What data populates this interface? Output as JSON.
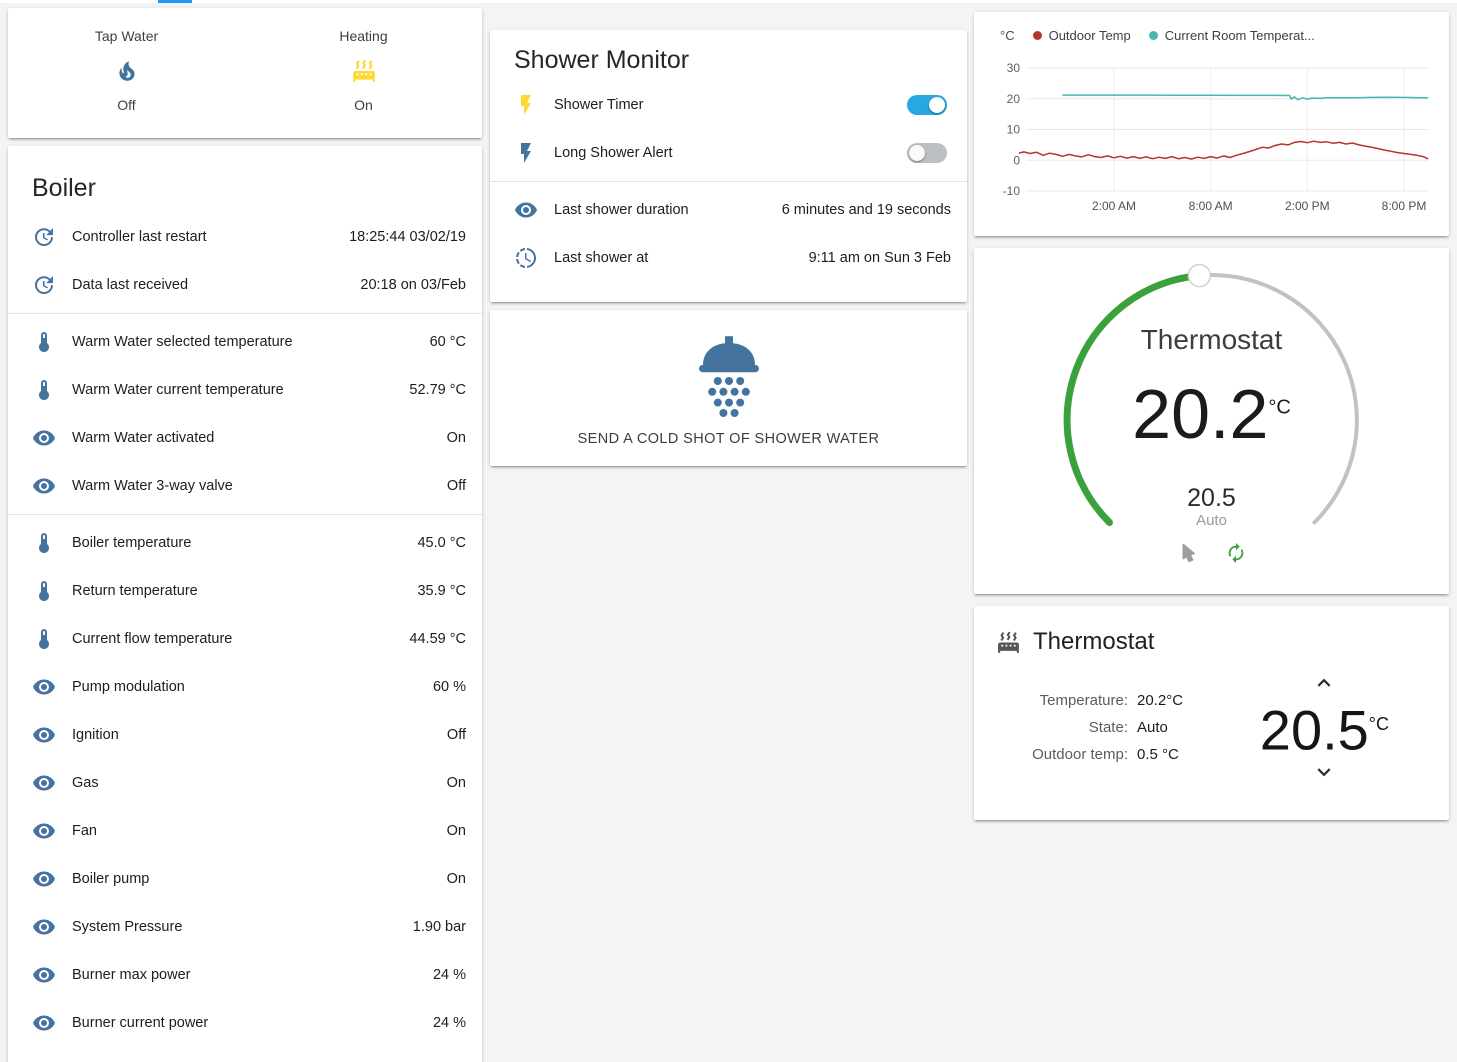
{
  "colors": {
    "accent": "#2196f3",
    "toggle_on": "#29a7e0",
    "icon_default": "#44739e",
    "icon_active": "#fdd835",
    "gauge_green": "#3aa13c",
    "gauge_track": "#c2c2c2",
    "outdoor_line": "#b5342c",
    "room_line": "#45b6b0"
  },
  "glance_card": {
    "items": [
      {
        "label": "Tap Water",
        "state": "Off",
        "icon": "fire",
        "icon_color": "#44739e"
      },
      {
        "label": "Heating",
        "state": "On",
        "icon": "radiator",
        "icon_color": "#fdd835"
      }
    ]
  },
  "boiler_card": {
    "title": "Boiler",
    "groups": [
      [
        {
          "icon": "update",
          "label": "Controller last restart",
          "value": "18:25:44 03/02/19"
        },
        {
          "icon": "update",
          "label": "Data last received",
          "value": "20:18 on 03/Feb"
        }
      ],
      [
        {
          "icon": "thermometer",
          "label": "Warm Water selected temperature",
          "value": "60 °C"
        },
        {
          "icon": "thermometer",
          "label": "Warm Water current temperature",
          "value": "52.79 °C"
        },
        {
          "icon": "eye",
          "label": "Warm Water activated",
          "value": "On"
        },
        {
          "icon": "eye",
          "label": "Warm Water 3-way valve",
          "value": "Off"
        }
      ],
      [
        {
          "icon": "thermometer",
          "label": "Boiler temperature",
          "value": "45.0 °C"
        },
        {
          "icon": "thermometer",
          "label": "Return temperature",
          "value": "35.9 °C"
        },
        {
          "icon": "thermometer",
          "label": "Current flow temperature",
          "value": "44.59 °C"
        },
        {
          "icon": "eye",
          "label": "Pump modulation",
          "value": "60 %"
        },
        {
          "icon": "eye",
          "label": "Ignition",
          "value": "Off"
        },
        {
          "icon": "eye",
          "label": "Gas",
          "value": "On"
        },
        {
          "icon": "eye",
          "label": "Fan",
          "value": "On"
        },
        {
          "icon": "eye",
          "label": "Boiler pump",
          "value": "On"
        },
        {
          "icon": "eye",
          "label": "System Pressure",
          "value": "1.90 bar"
        },
        {
          "icon": "eye",
          "label": "Burner max power",
          "value": "24 %"
        },
        {
          "icon": "eye",
          "label": "Burner current power",
          "value": "24 %"
        }
      ]
    ]
  },
  "shower_card": {
    "title": "Shower Monitor",
    "toggle_rows": [
      {
        "icon": "flash",
        "icon_color": "#fdd835",
        "label": "Shower Timer",
        "on": true
      },
      {
        "icon": "flash",
        "icon_color": "#44739e",
        "label": "Long Shower Alert",
        "on": false
      }
    ],
    "info_rows": [
      {
        "icon": "eye",
        "label": "Last shower duration",
        "value": "6 minutes and 19 seconds"
      },
      {
        "icon": "progress-clock",
        "label": "Last shower at",
        "value": "9:11 am on Sun 3 Feb"
      }
    ]
  },
  "cold_shot_card": {
    "label": "SEND A COLD SHOT OF SHOWER WATER",
    "icon": "shower-head",
    "icon_color": "#44739e"
  },
  "chart_data": {
    "type": "line",
    "title": "",
    "ylabel": "°C",
    "ylim": [
      -10,
      30
    ],
    "x_range_hours": [
      -3.9,
      21.5
    ],
    "y_ticks": [
      30,
      20,
      10,
      0,
      -10
    ],
    "x_ticks": [
      {
        "h": 2,
        "label": "2:00 AM"
      },
      {
        "h": 8,
        "label": "8:00 AM"
      },
      {
        "h": 14,
        "label": "2:00 PM"
      },
      {
        "h": 20,
        "label": "8:00 PM"
      }
    ],
    "legend": [
      {
        "label": "Outdoor Temp",
        "color": "#b5342c"
      },
      {
        "label": "Current Room Temperat...",
        "color": "#45b6b0"
      }
    ],
    "series": [
      {
        "name": "Outdoor Temp",
        "color": "#b5342c",
        "points": [
          [
            -3.9,
            2.3
          ],
          [
            -3.6,
            2.7
          ],
          [
            -3.2,
            2.2
          ],
          [
            -2.8,
            2.6
          ],
          [
            -2.4,
            1.6
          ],
          [
            -2,
            2.3
          ],
          [
            -1.6,
            1.9
          ],
          [
            -1.2,
            1.3
          ],
          [
            -0.8,
            1.9
          ],
          [
            -0.4,
            1.4
          ],
          [
            0,
            1.1
          ],
          [
            0.4,
            1.8
          ],
          [
            0.8,
            1.2
          ],
          [
            1.2,
            0.9
          ],
          [
            1.6,
            1.4
          ],
          [
            2,
            0.8
          ],
          [
            2.4,
            1.3
          ],
          [
            2.8,
            0.7
          ],
          [
            3.2,
            1.2
          ],
          [
            3.6,
            0.6
          ],
          [
            4,
            1.1
          ],
          [
            4.4,
            0.5
          ],
          [
            4.8,
            1.0
          ],
          [
            5.2,
            0.6
          ],
          [
            5.6,
            1.2
          ],
          [
            6,
            0.5
          ],
          [
            6.4,
            0.9
          ],
          [
            6.8,
            0.4
          ],
          [
            7.2,
            1.0
          ],
          [
            7.6,
            0.6
          ],
          [
            8,
            1.2
          ],
          [
            8.4,
            0.7
          ],
          [
            8.8,
            1.4
          ],
          [
            9.2,
            0.9
          ],
          [
            9.6,
            1.6
          ],
          [
            10,
            2.2
          ],
          [
            10.4,
            2.8
          ],
          [
            10.8,
            3.5
          ],
          [
            11.2,
            4.2
          ],
          [
            11.6,
            4.0
          ],
          [
            12,
            4.8
          ],
          [
            12.4,
            5.3
          ],
          [
            12.8,
            5.0
          ],
          [
            13.2,
            5.8
          ],
          [
            13.6,
            6.1
          ],
          [
            14,
            5.7
          ],
          [
            14.4,
            6.2
          ],
          [
            14.8,
            5.8
          ],
          [
            15.2,
            6.0
          ],
          [
            15.6,
            5.5
          ],
          [
            16,
            5.8
          ],
          [
            16.4,
            5.3
          ],
          [
            16.8,
            5.6
          ],
          [
            17.2,
            5.0
          ],
          [
            17.6,
            4.6
          ],
          [
            18,
            4.2
          ],
          [
            18.4,
            3.8
          ],
          [
            18.8,
            3.3
          ],
          [
            19.2,
            2.9
          ],
          [
            19.6,
            2.5
          ],
          [
            20,
            2.2
          ],
          [
            20.4,
            1.9
          ],
          [
            20.8,
            1.6
          ],
          [
            21.2,
            1.2
          ],
          [
            21.5,
            0.4
          ]
        ]
      },
      {
        "name": "Current Room Temperature",
        "color": "#45b6b0",
        "points": [
          [
            -1.2,
            21.2
          ],
          [
            0,
            21.2
          ],
          [
            2,
            21.2
          ],
          [
            4,
            21.2
          ],
          [
            6,
            21.15
          ],
          [
            8,
            21.15
          ],
          [
            10,
            21.1
          ],
          [
            12,
            21.1
          ],
          [
            12.9,
            21.05
          ],
          [
            13.0,
            19.9
          ],
          [
            13.2,
            20.6
          ],
          [
            13.4,
            19.7
          ],
          [
            13.7,
            20.3
          ],
          [
            14,
            19.9
          ],
          [
            14.3,
            20.2
          ],
          [
            14.8,
            20.1
          ],
          [
            15.2,
            20.3
          ],
          [
            16,
            20.3
          ],
          [
            17,
            20.35
          ],
          [
            18,
            20.45
          ],
          [
            19,
            20.5
          ],
          [
            20,
            20.45
          ],
          [
            21,
            20.35
          ],
          [
            21.5,
            20.3
          ]
        ]
      }
    ]
  },
  "gauge_card": {
    "title": "Thermostat",
    "current": "20.2",
    "unit": "°C",
    "target": "20.5",
    "mode": "Auto"
  },
  "thermostat_card": {
    "title": "Thermostat",
    "info": [
      {
        "label": "Temperature:",
        "value": "20.2°C"
      },
      {
        "label": "State:",
        "value": "Auto"
      },
      {
        "label": "Outdoor temp:",
        "value": "0.5 °C"
      }
    ],
    "target": "20.5",
    "target_unit": "°C"
  }
}
